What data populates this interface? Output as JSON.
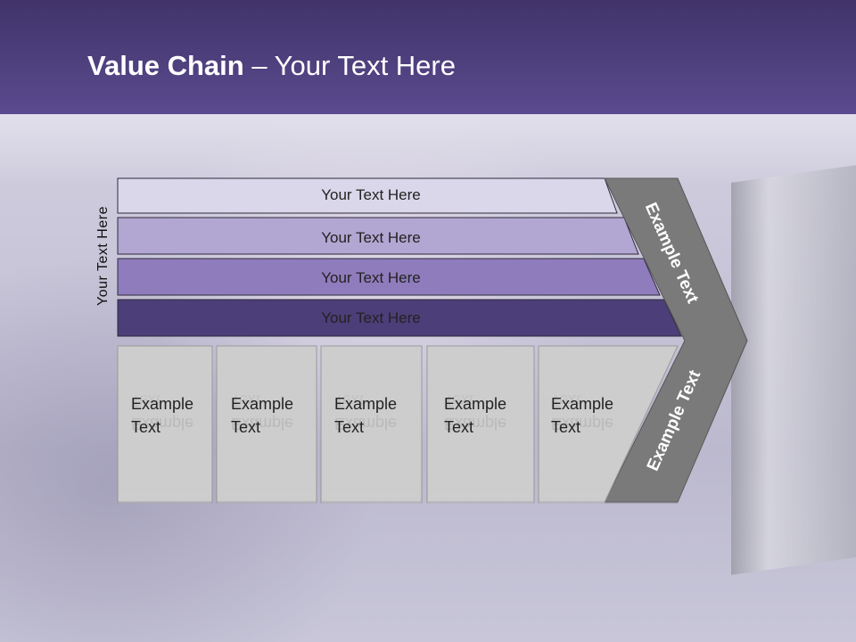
{
  "slide": {
    "title_bold": "Value Chain",
    "title_rest": " – Your Text Here",
    "side_label": "Your Text Here",
    "bars": [
      {
        "label": "Your Text Here",
        "color": "#dbd7ea"
      },
      {
        "label": "Your Text Here",
        "color": "#b2a6d2"
      },
      {
        "label": "Your Text Here",
        "color": "#8f7cbc"
      },
      {
        "label": "Your Text Here",
        "color": "#4c3e78"
      }
    ],
    "boxes": [
      {
        "line1": "Example",
        "line2": "Text"
      },
      {
        "line1": "Example",
        "line2": "Text"
      },
      {
        "line1": "Example",
        "line2": "Text"
      },
      {
        "line1": "Example",
        "line2": "Text"
      },
      {
        "line1": "Example",
        "line2": "Text"
      }
    ],
    "chevron_top_label": "Example Text",
    "chevron_bottom_label": "Example Text",
    "colors": {
      "header": "#4d3f7c",
      "box": "#cdcdcd",
      "chevron": "#7a7a7a"
    }
  }
}
